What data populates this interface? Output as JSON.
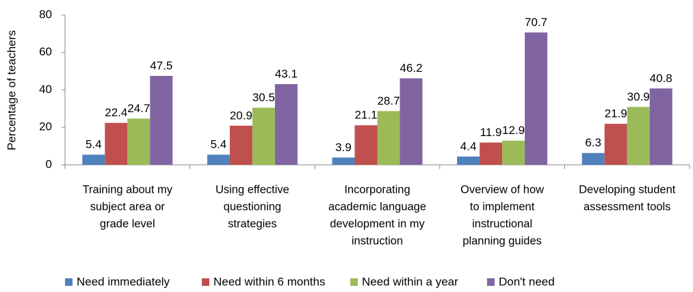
{
  "chart_data": {
    "type": "bar",
    "y_label": "Percentage of teachers",
    "categories": [
      [
        "Training about my",
        "subject area or",
        "grade level"
      ],
      [
        "Using effective",
        "questioning",
        "strategies"
      ],
      [
        "Incorporating",
        "academic language",
        "development in my",
        "instruction"
      ],
      [
        "Overview of how",
        "to implement",
        "instructional",
        "planning guides"
      ],
      [
        "Developing student",
        "assessment tools"
      ]
    ],
    "series": [
      {
        "name": "Need immediately",
        "color": "#4f81bd",
        "values": [
          5.4,
          5.4,
          3.9,
          4.4,
          6.3
        ]
      },
      {
        "name": "Need within 6 months",
        "color": "#c0504d",
        "values": [
          22.4,
          20.9,
          21.1,
          11.9,
          21.9
        ]
      },
      {
        "name": "Need within a year",
        "color": "#9bbb59",
        "values": [
          24.7,
          30.5,
          28.7,
          12.9,
          30.9
        ]
      },
      {
        "name": "Don't need",
        "color": "#8064a2",
        "values": [
          47.5,
          43.1,
          46.2,
          70.7,
          40.8
        ]
      }
    ],
    "ylim": [
      0,
      80
    ],
    "yticks": [
      0,
      20,
      40,
      60,
      80
    ],
    "grid": false,
    "legend": "bottom"
  }
}
